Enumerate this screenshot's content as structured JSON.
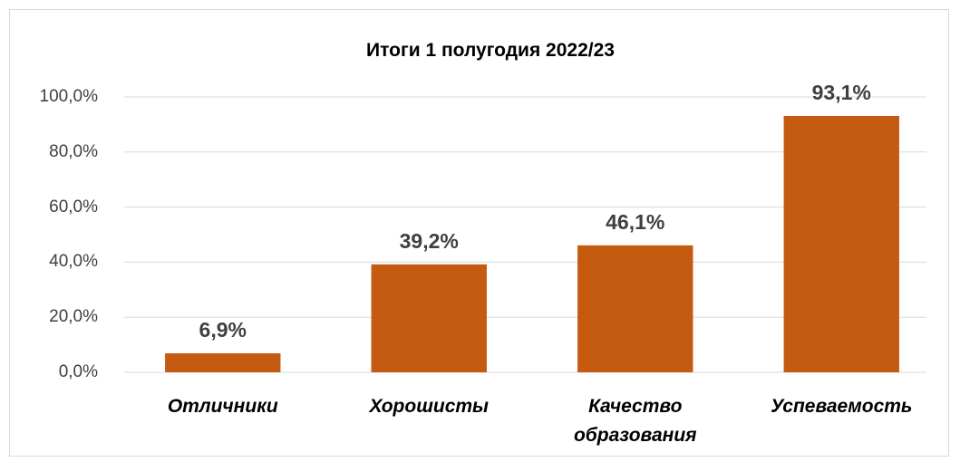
{
  "chart_data": {
    "type": "bar",
    "title": "Итоги 1 полугодия 2022/23",
    "categories": [
      "Отличники",
      "Хорошисты",
      "Качество образования",
      "Успеваемость"
    ],
    "values": [
      6.9,
      39.2,
      46.1,
      93.1
    ],
    "value_labels": [
      "6,9%",
      "39,2%",
      "46,1%",
      "93,1%"
    ],
    "color": "#c55a11",
    "ylim": [
      0,
      100
    ],
    "yticks": [
      {
        "value": 0,
        "label": "0,0%"
      },
      {
        "value": 20,
        "label": "20,0%"
      },
      {
        "value": 40,
        "label": "40,0%"
      },
      {
        "value": 60,
        "label": "60,0%"
      },
      {
        "value": 80,
        "label": "80,0%"
      },
      {
        "value": 100,
        "label": "100,0%"
      }
    ],
    "grid": true
  }
}
